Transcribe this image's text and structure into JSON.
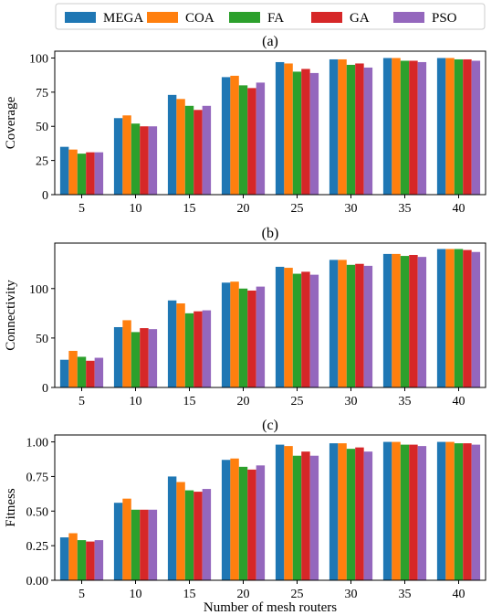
{
  "legend": {
    "placement": "top-center",
    "entries": [
      {
        "name": "MEGA",
        "color": "#1f77b4"
      },
      {
        "name": "COA",
        "color": "#ff7f0e"
      },
      {
        "name": "FA",
        "color": "#2ca02c"
      },
      {
        "name": "GA",
        "color": "#d62728"
      },
      {
        "name": "PSO",
        "color": "#9467bd"
      }
    ]
  },
  "chart_data": [
    {
      "type": "bar",
      "title": "(a)",
      "xlabel": "",
      "ylabel": "Coverage",
      "categories": [
        "5",
        "10",
        "15",
        "20",
        "25",
        "30",
        "35",
        "40"
      ],
      "ylim": [
        0,
        105
      ],
      "yticks": [
        0,
        25,
        50,
        75,
        100
      ],
      "ytick_labels": [
        "0",
        "25",
        "50",
        "75",
        "100"
      ],
      "grid": false,
      "series": [
        {
          "name": "MEGA",
          "values": [
            35,
            56,
            73,
            86,
            97,
            99,
            100,
            100
          ]
        },
        {
          "name": "COA",
          "values": [
            33,
            58,
            70,
            87,
            96,
            99,
            100,
            100
          ]
        },
        {
          "name": "FA",
          "values": [
            30,
            52,
            65,
            80,
            90,
            95,
            98,
            99
          ]
        },
        {
          "name": "GA",
          "values": [
            31,
            50,
            62,
            78,
            92,
            96,
            98,
            99
          ]
        },
        {
          "name": "PSO",
          "values": [
            31,
            50,
            65,
            82,
            89,
            93,
            97,
            98
          ]
        }
      ]
    },
    {
      "type": "bar",
      "title": "(b)",
      "xlabel": "",
      "ylabel": "Connectivity",
      "categories": [
        "5",
        "10",
        "15",
        "20",
        "25",
        "30",
        "35",
        "40"
      ],
      "ylim": [
        0,
        146
      ],
      "yticks": [
        0,
        50,
        100
      ],
      "ytick_labels": [
        "0",
        "50",
        "100"
      ],
      "grid": false,
      "series": [
        {
          "name": "MEGA",
          "values": [
            28,
            61,
            88,
            106,
            122,
            129,
            135,
            140
          ]
        },
        {
          "name": "COA",
          "values": [
            37,
            68,
            85,
            107,
            121,
            129,
            135,
            140
          ]
        },
        {
          "name": "FA",
          "values": [
            31,
            56,
            75,
            100,
            115,
            124,
            133,
            140
          ]
        },
        {
          "name": "GA",
          "values": [
            27,
            60,
            77,
            98,
            117,
            125,
            134,
            139
          ]
        },
        {
          "name": "PSO",
          "values": [
            30,
            59,
            78,
            102,
            114,
            123,
            132,
            137
          ]
        }
      ]
    },
    {
      "type": "bar",
      "title": "(c)",
      "xlabel": "Number of mesh routers",
      "ylabel": "Fitness",
      "categories": [
        "5",
        "10",
        "15",
        "20",
        "25",
        "30",
        "35",
        "40"
      ],
      "ylim": [
        0,
        1.05
      ],
      "yticks": [
        0,
        0.25,
        0.5,
        0.75,
        1.0
      ],
      "ytick_labels": [
        "0.00",
        "0.25",
        "0.50",
        "0.75",
        "1.00"
      ],
      "grid": false,
      "series": [
        {
          "name": "MEGA",
          "values": [
            0.31,
            0.56,
            0.75,
            0.87,
            0.98,
            0.99,
            1.0,
            1.0
          ]
        },
        {
          "name": "COA",
          "values": [
            0.34,
            0.59,
            0.71,
            0.88,
            0.97,
            0.99,
            1.0,
            1.0
          ]
        },
        {
          "name": "FA",
          "values": [
            0.29,
            0.51,
            0.65,
            0.82,
            0.9,
            0.95,
            0.98,
            0.99
          ]
        },
        {
          "name": "GA",
          "values": [
            0.28,
            0.51,
            0.64,
            0.8,
            0.93,
            0.96,
            0.98,
            0.99
          ]
        },
        {
          "name": "PSO",
          "values": [
            0.29,
            0.51,
            0.66,
            0.83,
            0.9,
            0.93,
            0.97,
            0.98
          ]
        }
      ]
    }
  ]
}
